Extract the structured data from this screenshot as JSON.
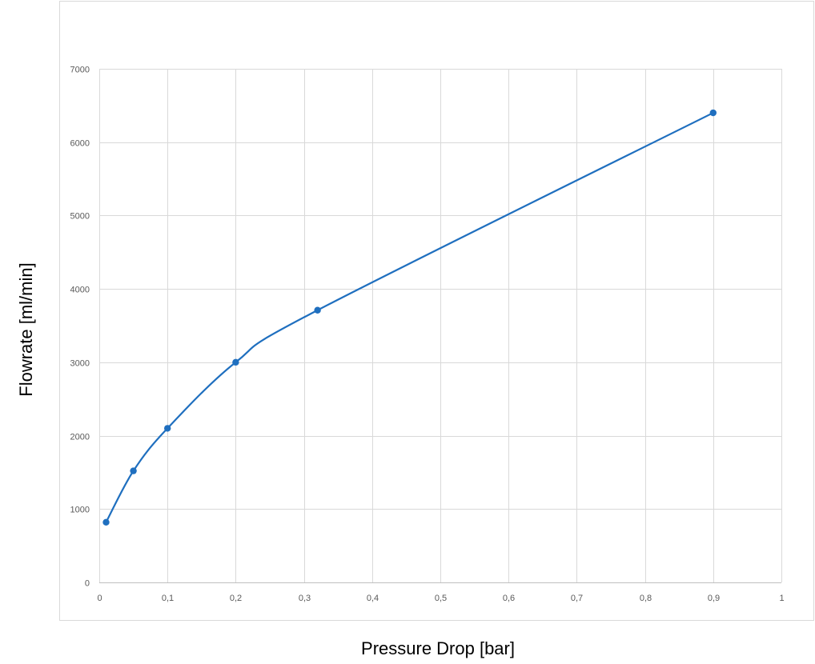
{
  "chart_data": {
    "type": "scatter",
    "title": "",
    "xlabel": "Pressure Drop [bar]",
    "ylabel": "Flowrate [ml/min]",
    "xlim": [
      0,
      1
    ],
    "ylim": [
      0,
      7000
    ],
    "x_ticks": [
      0,
      0.1,
      0.2,
      0.3,
      0.4,
      0.5,
      0.6,
      0.7,
      0.8,
      0.9,
      1
    ],
    "x_tick_labels": [
      "0",
      "0,1",
      "0,2",
      "0,3",
      "0,4",
      "0,5",
      "0,6",
      "0,7",
      "0,8",
      "0,9",
      "1"
    ],
    "y_ticks": [
      0,
      1000,
      2000,
      3000,
      4000,
      5000,
      6000,
      7000
    ],
    "y_tick_labels": [
      "0",
      "1000",
      "2000",
      "3000",
      "4000",
      "5000",
      "6000",
      "7000"
    ],
    "grid": true,
    "legend": "none",
    "smoothed_line_with_markers": true,
    "series_color": "#1f6fbf",
    "series": [
      {
        "x": [
          0.01,
          0.05,
          0.1,
          0.2,
          0.32,
          0.9
        ],
        "y": [
          820,
          1520,
          2100,
          3000,
          3710,
          6400
        ]
      }
    ]
  }
}
